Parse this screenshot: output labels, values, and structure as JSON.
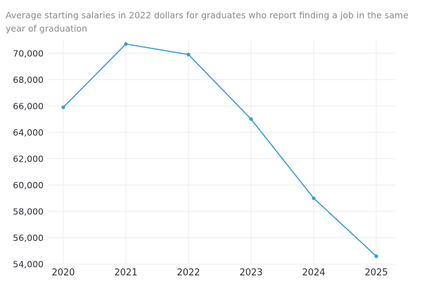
{
  "chart_data": {
    "type": "line",
    "subtitle_lines": [
      "Average starting salaries in 2022 dollars for graduates who report finding a job in the same",
      "year of graduation"
    ],
    "x": [
      "2020",
      "2021",
      "2022",
      "2023",
      "2024",
      "2025"
    ],
    "series": [
      {
        "values": [
          65900,
          70700,
          69900,
          65000,
          59000,
          54600
        ],
        "color": "#3a9ad9"
      }
    ],
    "ylim": [
      54000,
      71000
    ],
    "yticks": [
      54000,
      56000,
      58000,
      60000,
      62000,
      64000,
      66000,
      68000,
      70000
    ],
    "ytick_labels": [
      "54,000",
      "56,000",
      "58,000",
      "60,000",
      "62,000",
      "64,000",
      "66,000",
      "68,000",
      "70,000"
    ],
    "grid": true,
    "colors": {
      "line": "#3a9ad9",
      "grid": "#ececec",
      "text": "#2b2f36",
      "subtitle": "#8a8a8a"
    }
  }
}
